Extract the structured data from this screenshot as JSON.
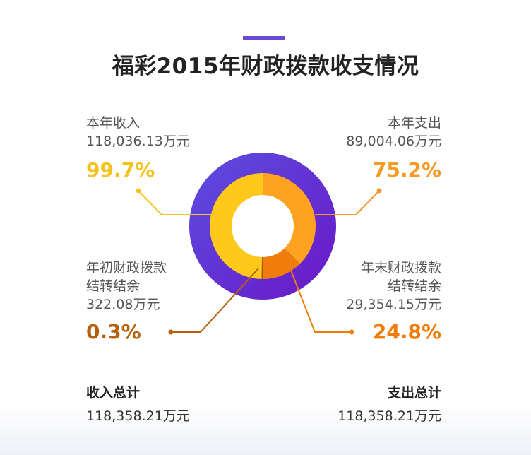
{
  "title": "福彩2015年财政拨款收支情况",
  "colors": {
    "accent": "#6a4bd1",
    "outer_ring_start": "#5b4fe0",
    "outer_ring_end": "#6a16c8",
    "income": "#ffc81a",
    "carryover_start": "#a35a00",
    "expense": "#ffa21f",
    "carryover_end": "#f07d0a",
    "leader_yellow": "#f5c32a",
    "leader_orange": "#f39a2a",
    "leader_brown": "#b5610d",
    "leader_orange2": "#f07d0a"
  },
  "labels": {
    "income": {
      "name": "本年收入",
      "amount": "118,036.13万元",
      "percent": "99.7%"
    },
    "expense": {
      "name": "本年支出",
      "amount": "89,004.06万元",
      "percent": "75.2%"
    },
    "start_carryover": {
      "name_line1": "年初财政拨款",
      "name_line2": "结转结余",
      "amount": "322.08万元",
      "percent": "0.3%"
    },
    "end_carryover": {
      "name_line1": "年末财政拨款",
      "name_line2": "结转结余",
      "amount": "29,354.15万元",
      "percent": "24.8%"
    }
  },
  "totals": {
    "income_label": "收入总计",
    "income_value": "118,358.21万元",
    "expense_label": "支出总计",
    "expense_value": "118,358.21万元"
  },
  "chart_data": {
    "type": "pie",
    "title": "福彩2015年财政拨款收支情况",
    "rings": [
      {
        "side": "left",
        "name": "收入",
        "slices": [
          {
            "label": "本年收入",
            "value": 118036.13,
            "percent": 99.7
          },
          {
            "label": "年初财政拨款结转结余",
            "value": 322.08,
            "percent": 0.3
          }
        ]
      },
      {
        "side": "right",
        "name": "支出",
        "slices": [
          {
            "label": "本年支出",
            "value": 89004.06,
            "percent": 75.2
          },
          {
            "label": "年末财政拨款结转结余",
            "value": 29354.15,
            "percent": 24.8
          }
        ]
      }
    ],
    "total": 118358.21,
    "unit": "万元"
  }
}
